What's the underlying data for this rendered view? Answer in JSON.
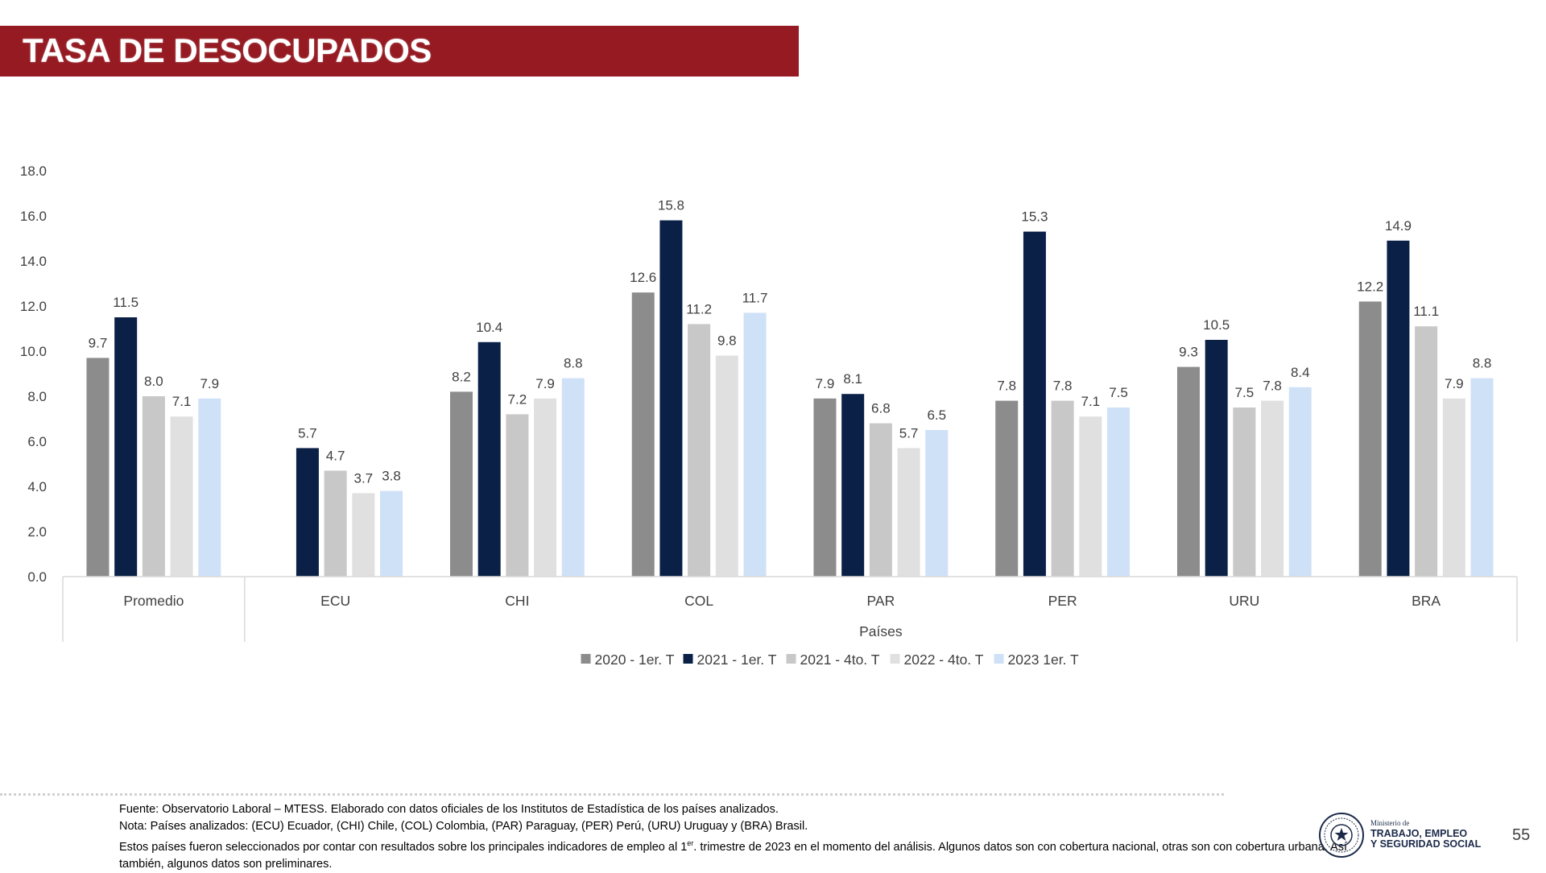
{
  "title": "TASA DE DESOCUPADOS",
  "chart_data": {
    "type": "bar",
    "categories": [
      "Promedio",
      "ECU",
      "CHI",
      "COL",
      "PAR",
      "PER",
      "URU",
      "BRA"
    ],
    "series": [
      {
        "name": "2020 - 1er. T",
        "color": "#8c8c8c",
        "values": [
          9.7,
          null,
          8.2,
          12.6,
          7.9,
          7.8,
          9.3,
          12.2
        ]
      },
      {
        "name": "2021 - 1er. T",
        "color": "#0a2046",
        "values": [
          11.5,
          5.7,
          10.4,
          15.8,
          8.1,
          15.3,
          10.5,
          14.9
        ]
      },
      {
        "name": "2021 - 4to. T",
        "color": "#c8c8c8",
        "values": [
          8.0,
          4.7,
          7.2,
          11.2,
          6.8,
          7.8,
          7.5,
          11.1
        ]
      },
      {
        "name": "2022 - 4to. T",
        "color": "#e0e0e0",
        "values": [
          7.1,
          3.7,
          7.9,
          9.8,
          5.7,
          7.1,
          7.8,
          7.9
        ]
      },
      {
        "name": "2023 1er. T",
        "color": "#cfe1f7",
        "values": [
          7.9,
          3.8,
          8.8,
          11.7,
          6.5,
          7.5,
          8.4,
          8.8
        ]
      }
    ],
    "yticks": [
      "0.0",
      "2.0",
      "4.0",
      "6.0",
      "8.0",
      "10.0",
      "12.0",
      "14.0",
      "16.0",
      "18.0"
    ],
    "ylim": [
      0,
      18
    ],
    "xlabel": "Países",
    "ylabel": "",
    "legend_position": "bottom",
    "grid": false
  },
  "footer": {
    "source": "Fuente: Observatorio Laboral – MTESS. Elaborado con datos oficiales de los Institutos de Estadística de los países analizados.",
    "note": "Nota: Países analizados: (ECU) Ecuador, (CHI) Chile, (COL) Colombia, (PAR) Paraguay, (PER) Perú, (URU) Uruguay y (BRA) Brasil.",
    "selection_before": "Estos países fueron seleccionados por contar con resultados sobre los principales indicadores de empleo al 1",
    "selection_sup": "er",
    "selection_after": ". trimestre de 2023 en el momento del análisis. Algunos datos son con cobertura nacional, otras son con cobertura urbana. Así también, algunos datos son preliminares."
  },
  "logo": {
    "small_text": "Ministerio de",
    "line1": "TRABAJO, EMPLEO",
    "line2": "Y SEGURIDAD SOCIAL"
  },
  "page_number": "55"
}
